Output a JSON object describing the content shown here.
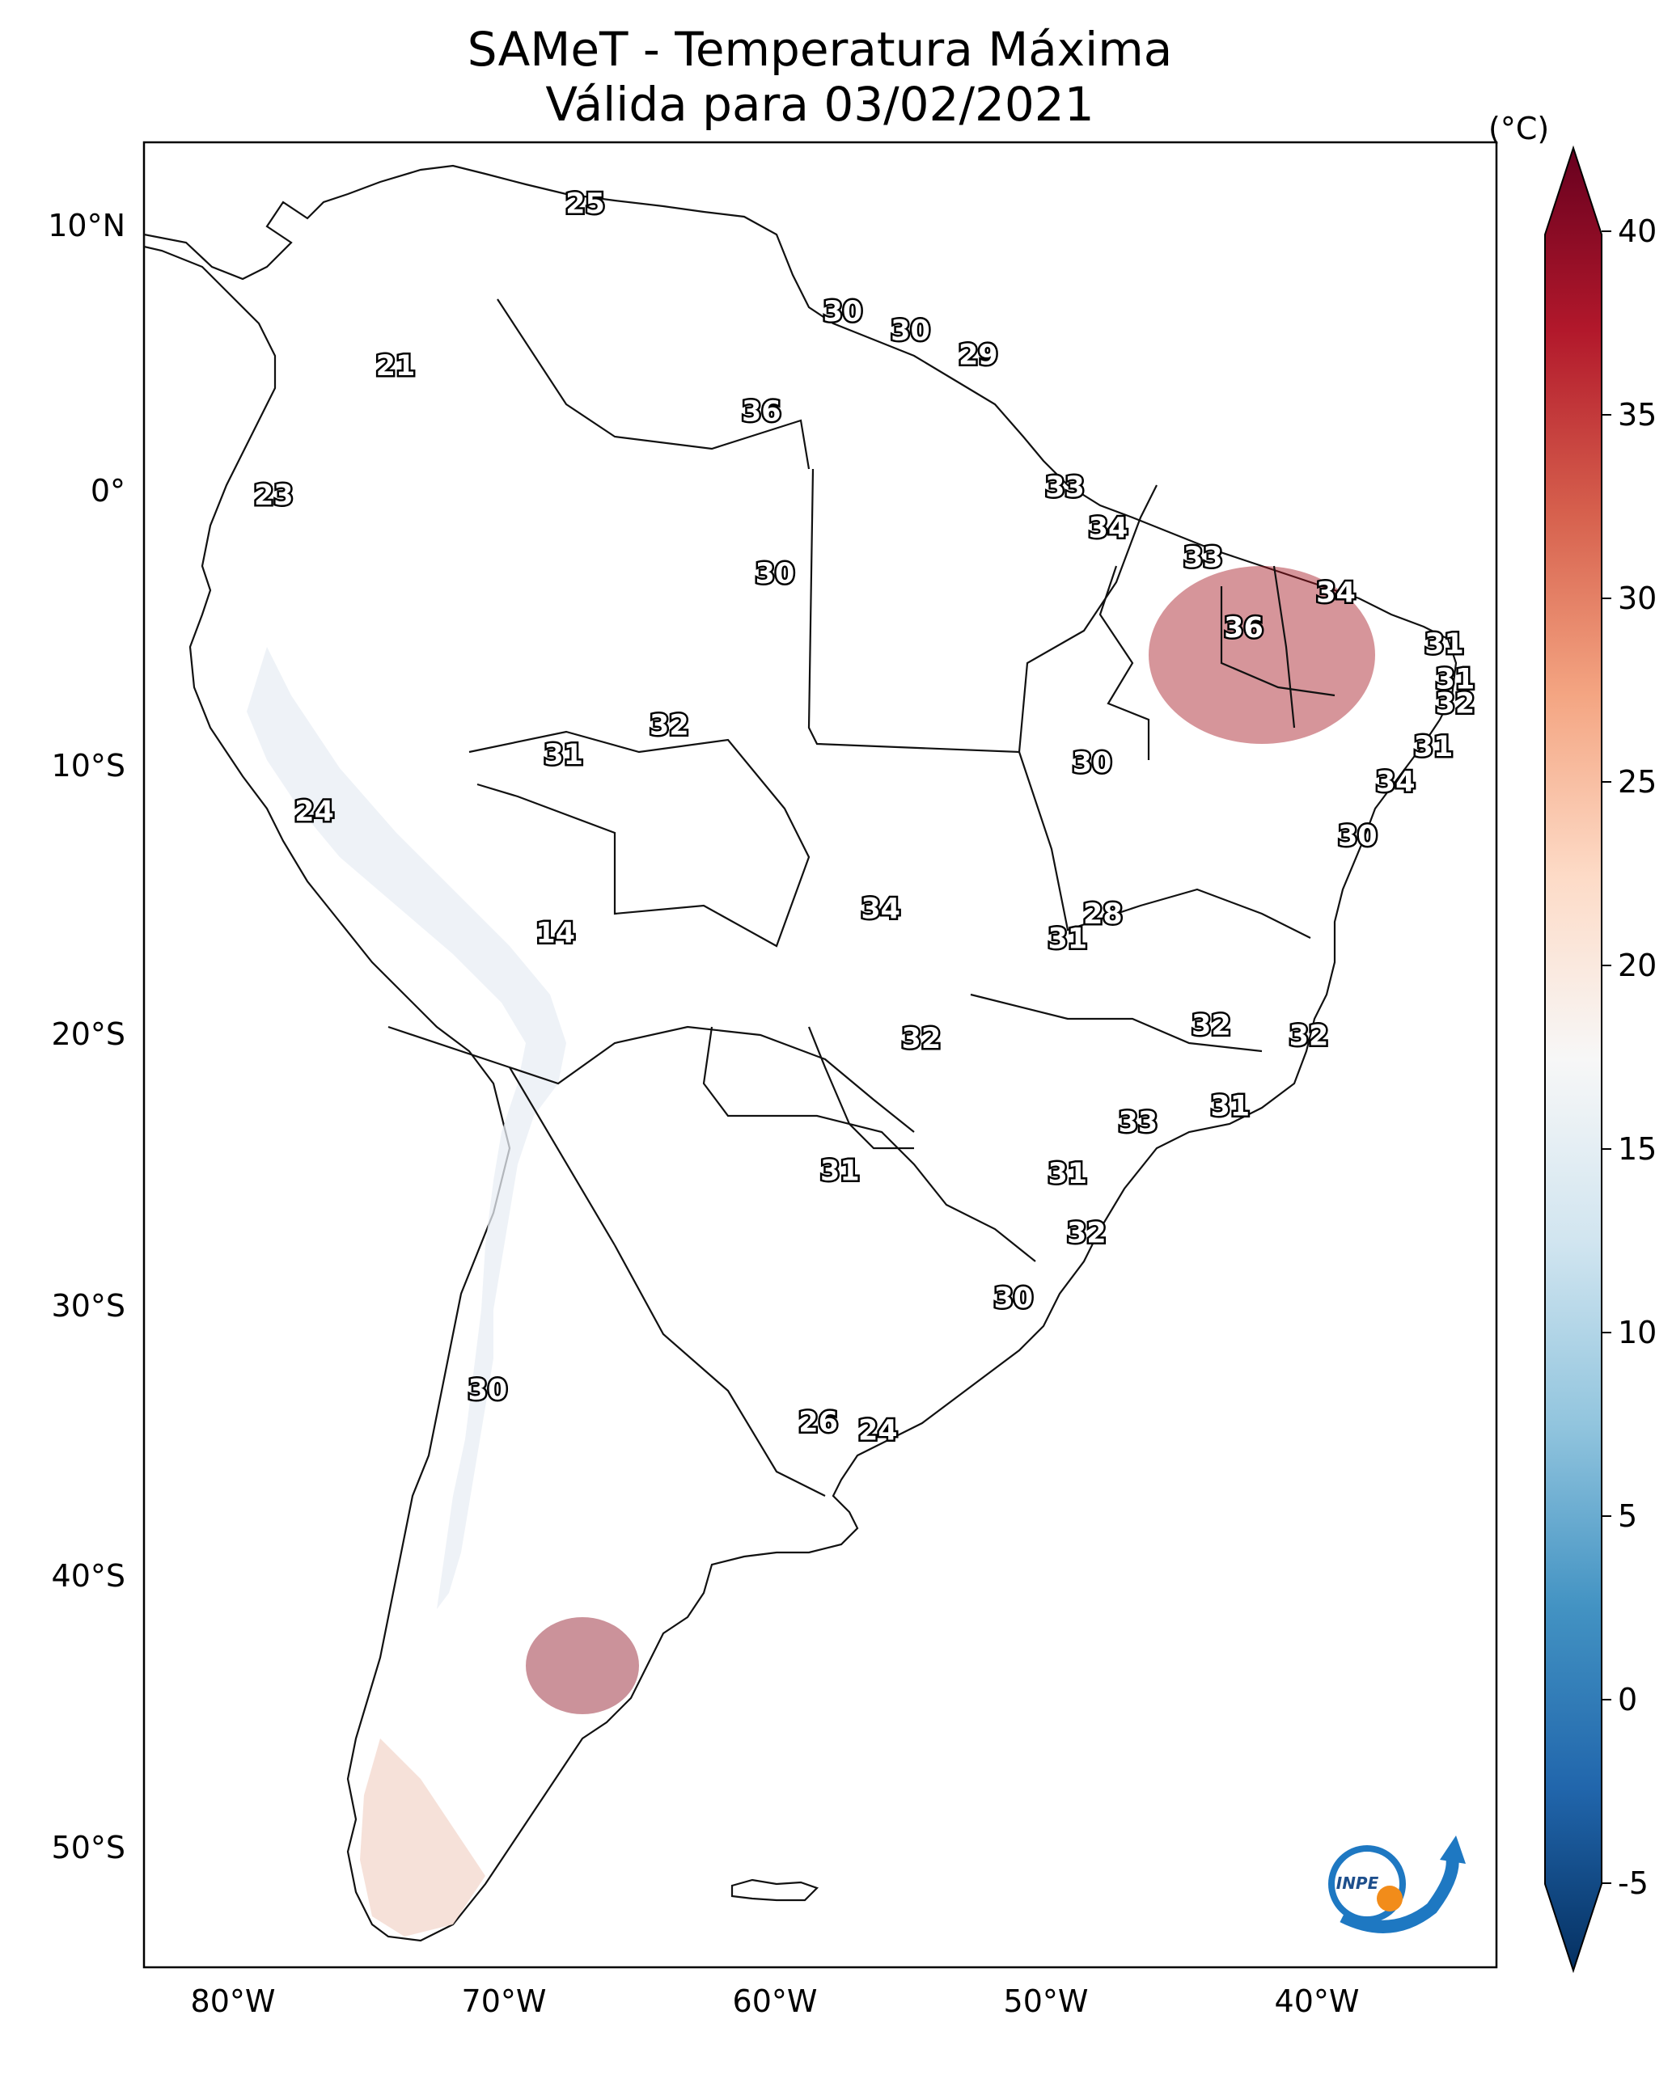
{
  "title": {
    "line1": "SAMeT - Temperatura Máxima",
    "line2": "Válida para 03/02/2021"
  },
  "colorbar": {
    "unit": "(°C)",
    "ticks": [
      "40",
      "35",
      "30",
      "25",
      "20",
      "15",
      "10",
      "5",
      "0",
      "-5"
    ],
    "colors": [
      "#67001f",
      "#b2182b",
      "#d6604d",
      "#f4a582",
      "#fddbc7",
      "#f7f7f7",
      "#d1e5f0",
      "#92c5de",
      "#4393c3",
      "#2166ac",
      "#053061"
    ]
  },
  "axes": {
    "lat_labels": [
      "10°N",
      "0°",
      "10°S",
      "20°S",
      "30°S",
      "40°S",
      "50°S"
    ],
    "lon_labels": [
      "80°W",
      "70°W",
      "60°W",
      "50°W",
      "40°W"
    ]
  },
  "map_values": [
    {
      "label": "25",
      "lon": -67,
      "lat": 10.5
    },
    {
      "label": "21",
      "lon": -74,
      "lat": 4.5
    },
    {
      "label": "30",
      "lon": -57.5,
      "lat": 6.5
    },
    {
      "label": "30",
      "lon": -55,
      "lat": 5.8
    },
    {
      "label": "29",
      "lon": -52.5,
      "lat": 4.9
    },
    {
      "label": "36",
      "lon": -60.5,
      "lat": 2.8
    },
    {
      "label": "23",
      "lon": -78.5,
      "lat": -0.3
    },
    {
      "label": "33",
      "lon": -49.3,
      "lat": 0
    },
    {
      "label": "34",
      "lon": -47.7,
      "lat": -1.5
    },
    {
      "label": "30",
      "lon": -60,
      "lat": -3.2
    },
    {
      "label": "33",
      "lon": -44.2,
      "lat": -2.6
    },
    {
      "label": "34",
      "lon": -39.3,
      "lat": -3.9
    },
    {
      "label": "36",
      "lon": -42.7,
      "lat": -5.2
    },
    {
      "label": "31",
      "lon": -35.3,
      "lat": -5.8
    },
    {
      "label": "31",
      "lon": -34.9,
      "lat": -7.1
    },
    {
      "label": "32",
      "lon": -34.9,
      "lat": -8
    },
    {
      "label": "32",
      "lon": -63.9,
      "lat": -8.8
    },
    {
      "label": "31",
      "lon": -67.8,
      "lat": -9.9
    },
    {
      "label": "30",
      "lon": -48.3,
      "lat": -10.2
    },
    {
      "label": "31",
      "lon": -35.7,
      "lat": -9.6
    },
    {
      "label": "34",
      "lon": -37.1,
      "lat": -10.9
    },
    {
      "label": "24",
      "lon": -77,
      "lat": -12
    },
    {
      "label": "30",
      "lon": -38.5,
      "lat": -12.9
    },
    {
      "label": "34",
      "lon": -56.1,
      "lat": -15.6
    },
    {
      "label": "28",
      "lon": -47.9,
      "lat": -15.8
    },
    {
      "label": "31",
      "lon": -49.2,
      "lat": -16.7
    },
    {
      "label": "14",
      "lon": -68.1,
      "lat": -16.5
    },
    {
      "label": "32",
      "lon": -43.9,
      "lat": -19.9
    },
    {
      "label": "32",
      "lon": -40.3,
      "lat": -20.3
    },
    {
      "label": "32",
      "lon": -54.6,
      "lat": -20.4
    },
    {
      "label": "31",
      "lon": -43.2,
      "lat": -22.9
    },
    {
      "label": "33",
      "lon": -46.6,
      "lat": -23.5
    },
    {
      "label": "31",
      "lon": -57.6,
      "lat": -25.3
    },
    {
      "label": "31",
      "lon": -49.2,
      "lat": -25.4
    },
    {
      "label": "32",
      "lon": -48.5,
      "lat": -27.6
    },
    {
      "label": "30",
      "lon": -51.2,
      "lat": -30
    },
    {
      "label": "30",
      "lon": -70.6,
      "lat": -33.4
    },
    {
      "label": "26",
      "lon": -58.4,
      "lat": -34.6
    },
    {
      "label": "24",
      "lon": -56.2,
      "lat": -34.9
    }
  ],
  "logo": {
    "text": "INPE"
  }
}
